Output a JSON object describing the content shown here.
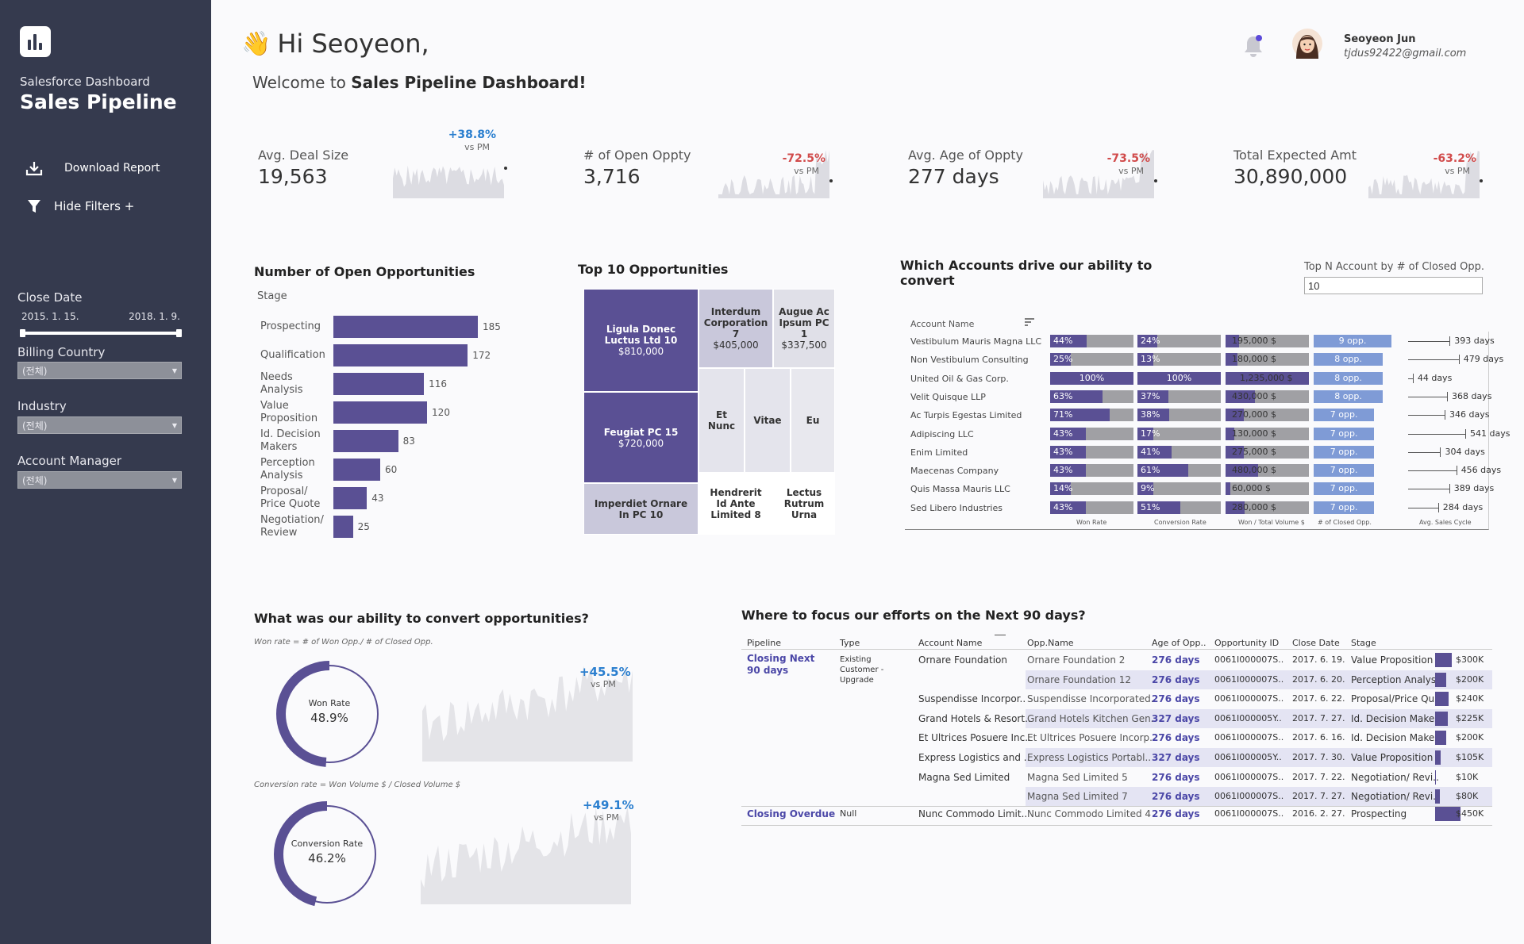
{
  "sidebar": {
    "subtitle": "Salesforce Dashboard",
    "title": "Sales Pipeline",
    "download_label": "Download Report",
    "hide_filters_label": "Hide Filters +",
    "close_date_label": "Close Date",
    "date_start": "2015. 1. 15.",
    "date_end": "2018. 1. 9.",
    "billing_country_label": "Billing Country",
    "billing_country_value": "(전체)",
    "industry_label": "Industry",
    "industry_value": "(전체)",
    "account_manager_label": "Account Manager",
    "account_manager_value": "(전체)"
  },
  "header": {
    "greeting": "Hi Seoyeon,",
    "welcome_prefix": "Welcome to ",
    "welcome_bold": "Sales Pipeline Dashboard!",
    "user_name": "Seoyeon Jun",
    "user_email": "tjdus92422@gmail.com"
  },
  "kpis": [
    {
      "label": "Avg. Deal Size",
      "value": "19,563",
      "pct": "+38.8%",
      "vs": "vs PM"
    },
    {
      "label": "# of Open Oppty",
      "value": "3,716",
      "pct": "-72.5%",
      "vs": "vs PM"
    },
    {
      "label": "Avg. Age of Oppty",
      "value": "277 days",
      "pct": "-73.5%",
      "vs": "vs PM"
    },
    {
      "label": "Total Expected Amt",
      "value": "30,890,000",
      "pct": "-63.2%",
      "vs": "vs PM"
    }
  ],
  "open_opps": {
    "title": "Number of Open Opportunities",
    "stage_header": "Stage",
    "chart_data": {
      "type": "bar",
      "orientation": "horizontal",
      "categories": [
        "Prospecting",
        "Qualification",
        "Needs Analysis",
        "Value Proposition",
        "Id. Decision Makers",
        "Perception Analysis",
        "Proposal/ Price Quote",
        "Negotiation/ Review"
      ],
      "category_lines": [
        [
          "Prospecting"
        ],
        [
          "Qualification"
        ],
        [
          "Needs",
          "Analysis"
        ],
        [
          "Value",
          "Proposition"
        ],
        [
          "Id. Decision",
          "Makers"
        ],
        [
          "Perception",
          "Analysis"
        ],
        [
          "Proposal/",
          "Price Quote"
        ],
        [
          "Negotiation/",
          "Review"
        ]
      ],
      "values": [
        185,
        172,
        116,
        120,
        83,
        60,
        43,
        25
      ],
      "xlim": [
        0,
        200
      ]
    }
  },
  "top10": {
    "title": "Top 10 Opportunities",
    "chart_data": {
      "type": "treemap",
      "items": [
        {
          "name": "Ligula Donec Luctus Ltd 10",
          "value": "$810,000"
        },
        {
          "name": "Feugiat PC 15",
          "value": "$720,000"
        },
        {
          "name": "Imperdiet Ornare In PC 10",
          "value": ""
        },
        {
          "name": "Interdum Corporation 7",
          "value": "$405,000"
        },
        {
          "name": "Augue Ac Ipsum PC 1",
          "value": "$337,500"
        },
        {
          "name": "Et Nunc",
          "value": ""
        },
        {
          "name": "Vitae",
          "value": ""
        },
        {
          "name": "Eu",
          "value": ""
        },
        {
          "name": "Hendrerit Id Ante Limited 8",
          "value": ""
        },
        {
          "name": "Lectus Rutrum Urna",
          "value": ""
        }
      ]
    }
  },
  "accounts": {
    "title": "Which Accounts drive our ability to convert",
    "topn_label": "Top N Account by # of Closed Opp.",
    "topn_value": "10",
    "account_header": "Account Name",
    "axis_labels": [
      "Won Rate",
      "Conversion Rate",
      "Won / Total Volume $",
      "# of Closed Opp.",
      "Avg. Sales Cycle"
    ],
    "rows": [
      {
        "name": "Vestibulum Mauris Magna LLC",
        "won": 44,
        "won_label": "44%",
        "conv": 24,
        "conv_label": "24%",
        "vol": 195000,
        "vol_label": "195,000 $",
        "opp": 9,
        "opp_label": "9 opp.",
        "cycle": 393,
        "cycle_label": "393 days"
      },
      {
        "name": "Non Vestibulum Consulting",
        "won": 25,
        "won_label": "25%",
        "conv": 13,
        "conv_label": "13%",
        "vol": 180000,
        "vol_label": "180,000 $",
        "opp": 8,
        "opp_label": "8 opp.",
        "cycle": 479,
        "cycle_label": "479 days"
      },
      {
        "name": "United Oil & Gas Corp.",
        "won": 100,
        "won_label": "100%",
        "conv": 100,
        "conv_label": "100%",
        "vol": 1235000,
        "vol_label": "1,235,000 $",
        "opp": 8,
        "opp_label": "8 opp.",
        "cycle": 44,
        "cycle_label": "44 days"
      },
      {
        "name": "Velit Quisque LLP",
        "won": 63,
        "won_label": "63%",
        "conv": 37,
        "conv_label": "37%",
        "vol": 430000,
        "vol_label": "430,000 $",
        "opp": 8,
        "opp_label": "8 opp.",
        "cycle": 368,
        "cycle_label": "368 days"
      },
      {
        "name": "Ac Turpis Egestas Limited",
        "won": 71,
        "won_label": "71%",
        "conv": 38,
        "conv_label": "38%",
        "vol": 270000,
        "vol_label": "270,000 $",
        "opp": 7,
        "opp_label": "7 opp.",
        "cycle": 346,
        "cycle_label": "346 days"
      },
      {
        "name": "Adipiscing LLC",
        "won": 43,
        "won_label": "43%",
        "conv": 17,
        "conv_label": "17%",
        "vol": 130000,
        "vol_label": "130,000 $",
        "opp": 7,
        "opp_label": "7 opp.",
        "cycle": 541,
        "cycle_label": "541 days"
      },
      {
        "name": "Enim Limited",
        "won": 43,
        "won_label": "43%",
        "conv": 41,
        "conv_label": "41%",
        "vol": 275000,
        "vol_label": "275,000 $",
        "opp": 7,
        "opp_label": "7 opp.",
        "cycle": 304,
        "cycle_label": "304 days"
      },
      {
        "name": "Maecenas Company",
        "won": 43,
        "won_label": "43%",
        "conv": 61,
        "conv_label": "61%",
        "vol": 480000,
        "vol_label": "480,000 $",
        "opp": 7,
        "opp_label": "7 opp.",
        "cycle": 456,
        "cycle_label": "456 days"
      },
      {
        "name": "Quis Massa Mauris LLC",
        "won": 14,
        "won_label": "14%",
        "conv": 9,
        "conv_label": "9%",
        "vol": 60000,
        "vol_label": "60,000 $",
        "opp": 7,
        "opp_label": "7 opp.",
        "cycle": 389,
        "cycle_label": "389 days"
      },
      {
        "name": "Sed Libero Industries",
        "won": 43,
        "won_label": "43%",
        "conv": 51,
        "conv_label": "51%",
        "vol": 280000,
        "vol_label": "280,000 $",
        "opp": 7,
        "opp_label": "7 opp.",
        "cycle": 284,
        "cycle_label": "284 days"
      }
    ]
  },
  "convert": {
    "title": "What was our ability to convert opportunities?",
    "won_formula": "Won rate = # of Won Opp./ # of Closed Opp.",
    "won_label": "Won Rate",
    "won_value": "48.9%",
    "won_fraction": 0.489,
    "won_pct": "+45.5%",
    "won_vs": "vs PM",
    "conv_formula": "Conversion rate = Won Volume $ / Closed Volume $",
    "conv_label": "Conversion Rate",
    "conv_value": "46.2%",
    "conv_fraction": 0.462,
    "conv_pct": "+49.1%",
    "conv_vs": "vs PM"
  },
  "next90": {
    "title": "Where to focus our efforts on the Next 90 days?",
    "headers": [
      "Pipeline",
      "Type",
      "Account Name",
      "Opp.Name",
      "Age of Opp..",
      "Opportunity ID",
      "Close Date",
      "Stage"
    ],
    "group1": "Closing Next 90 days",
    "group1_type": "Existing Customer - Upgrade",
    "group2": "Closing Overdue",
    "group2_type": "Null",
    "rows": [
      {
        "account": "Ornare Foundation",
        "opp": "Ornare Foundation 2",
        "age": "276 days",
        "id": "0061I000007S..",
        "date": "2017. 6. 19.",
        "stage": "Value Proposition",
        "amt": 300,
        "amt_label": "$300K"
      },
      {
        "account": "",
        "opp": "Ornare Foundation 12",
        "age": "276 days",
        "id": "0061I000007S..",
        "date": "2017. 6. 20.",
        "stage": "Perception Analys..",
        "amt": 200,
        "amt_label": "$200K"
      },
      {
        "account": "Suspendisse Incorpor..",
        "opp": "Suspendisse Incorporated..",
        "age": "276 days",
        "id": "0061I000007S..",
        "date": "2017. 6. 22.",
        "stage": "Proposal/Price Qu..",
        "amt": 240,
        "amt_label": "$240K"
      },
      {
        "account": "Grand Hotels & Resort..",
        "opp": "Grand Hotels Kitchen Gen..",
        "age": "327 days",
        "id": "0061I000005Y..",
        "date": "2017. 7. 27.",
        "stage": "Id. Decision Make..",
        "amt": 225,
        "amt_label": "$225K"
      },
      {
        "account": "Et Ultrices Posuere Inc..",
        "opp": "Et Ultrices Posuere Incorp..",
        "age": "276 days",
        "id": "0061I000007S..",
        "date": "2017. 6. 16.",
        "stage": "Id. Decision Make..",
        "amt": 200,
        "amt_label": "$200K"
      },
      {
        "account": "Express Logistics and ..",
        "opp": "Express Logistics Portabl..",
        "age": "327 days",
        "id": "0061I000005Y..",
        "date": "2017. 7. 30.",
        "stage": "Value Proposition",
        "amt": 105,
        "amt_label": "$105K"
      },
      {
        "account": "Magna Sed Limited",
        "opp": "Magna Sed Limited 5",
        "age": "276 days",
        "id": "0061I000007S..",
        "date": "2017. 7. 22.",
        "stage": "Negotiation/ Revi..",
        "amt": 10,
        "amt_label": "$10K"
      },
      {
        "account": "",
        "opp": "Magna Sed Limited 7",
        "age": "276 days",
        "id": "0061I000007S..",
        "date": "2017. 7. 27.",
        "stage": "Negotiation/ Revi..",
        "amt": 80,
        "amt_label": "$80K"
      },
      {
        "account": "Nunc Commodo Limit..",
        "opp": "Nunc Commodo Limited 4",
        "age": "276 days",
        "id": "0061I000007S..",
        "date": "2016. 2. 27.",
        "stage": "Prospecting",
        "amt": 450,
        "amt_label": "$450K"
      }
    ]
  },
  "colors": {
    "sidebar": "#353a4e",
    "accent": "#5a5094",
    "positive": "#2b7fcf",
    "negative": "#d14b4b",
    "bar_light": "#7f9bd6",
    "bar_grey": "#a0a0a4"
  }
}
